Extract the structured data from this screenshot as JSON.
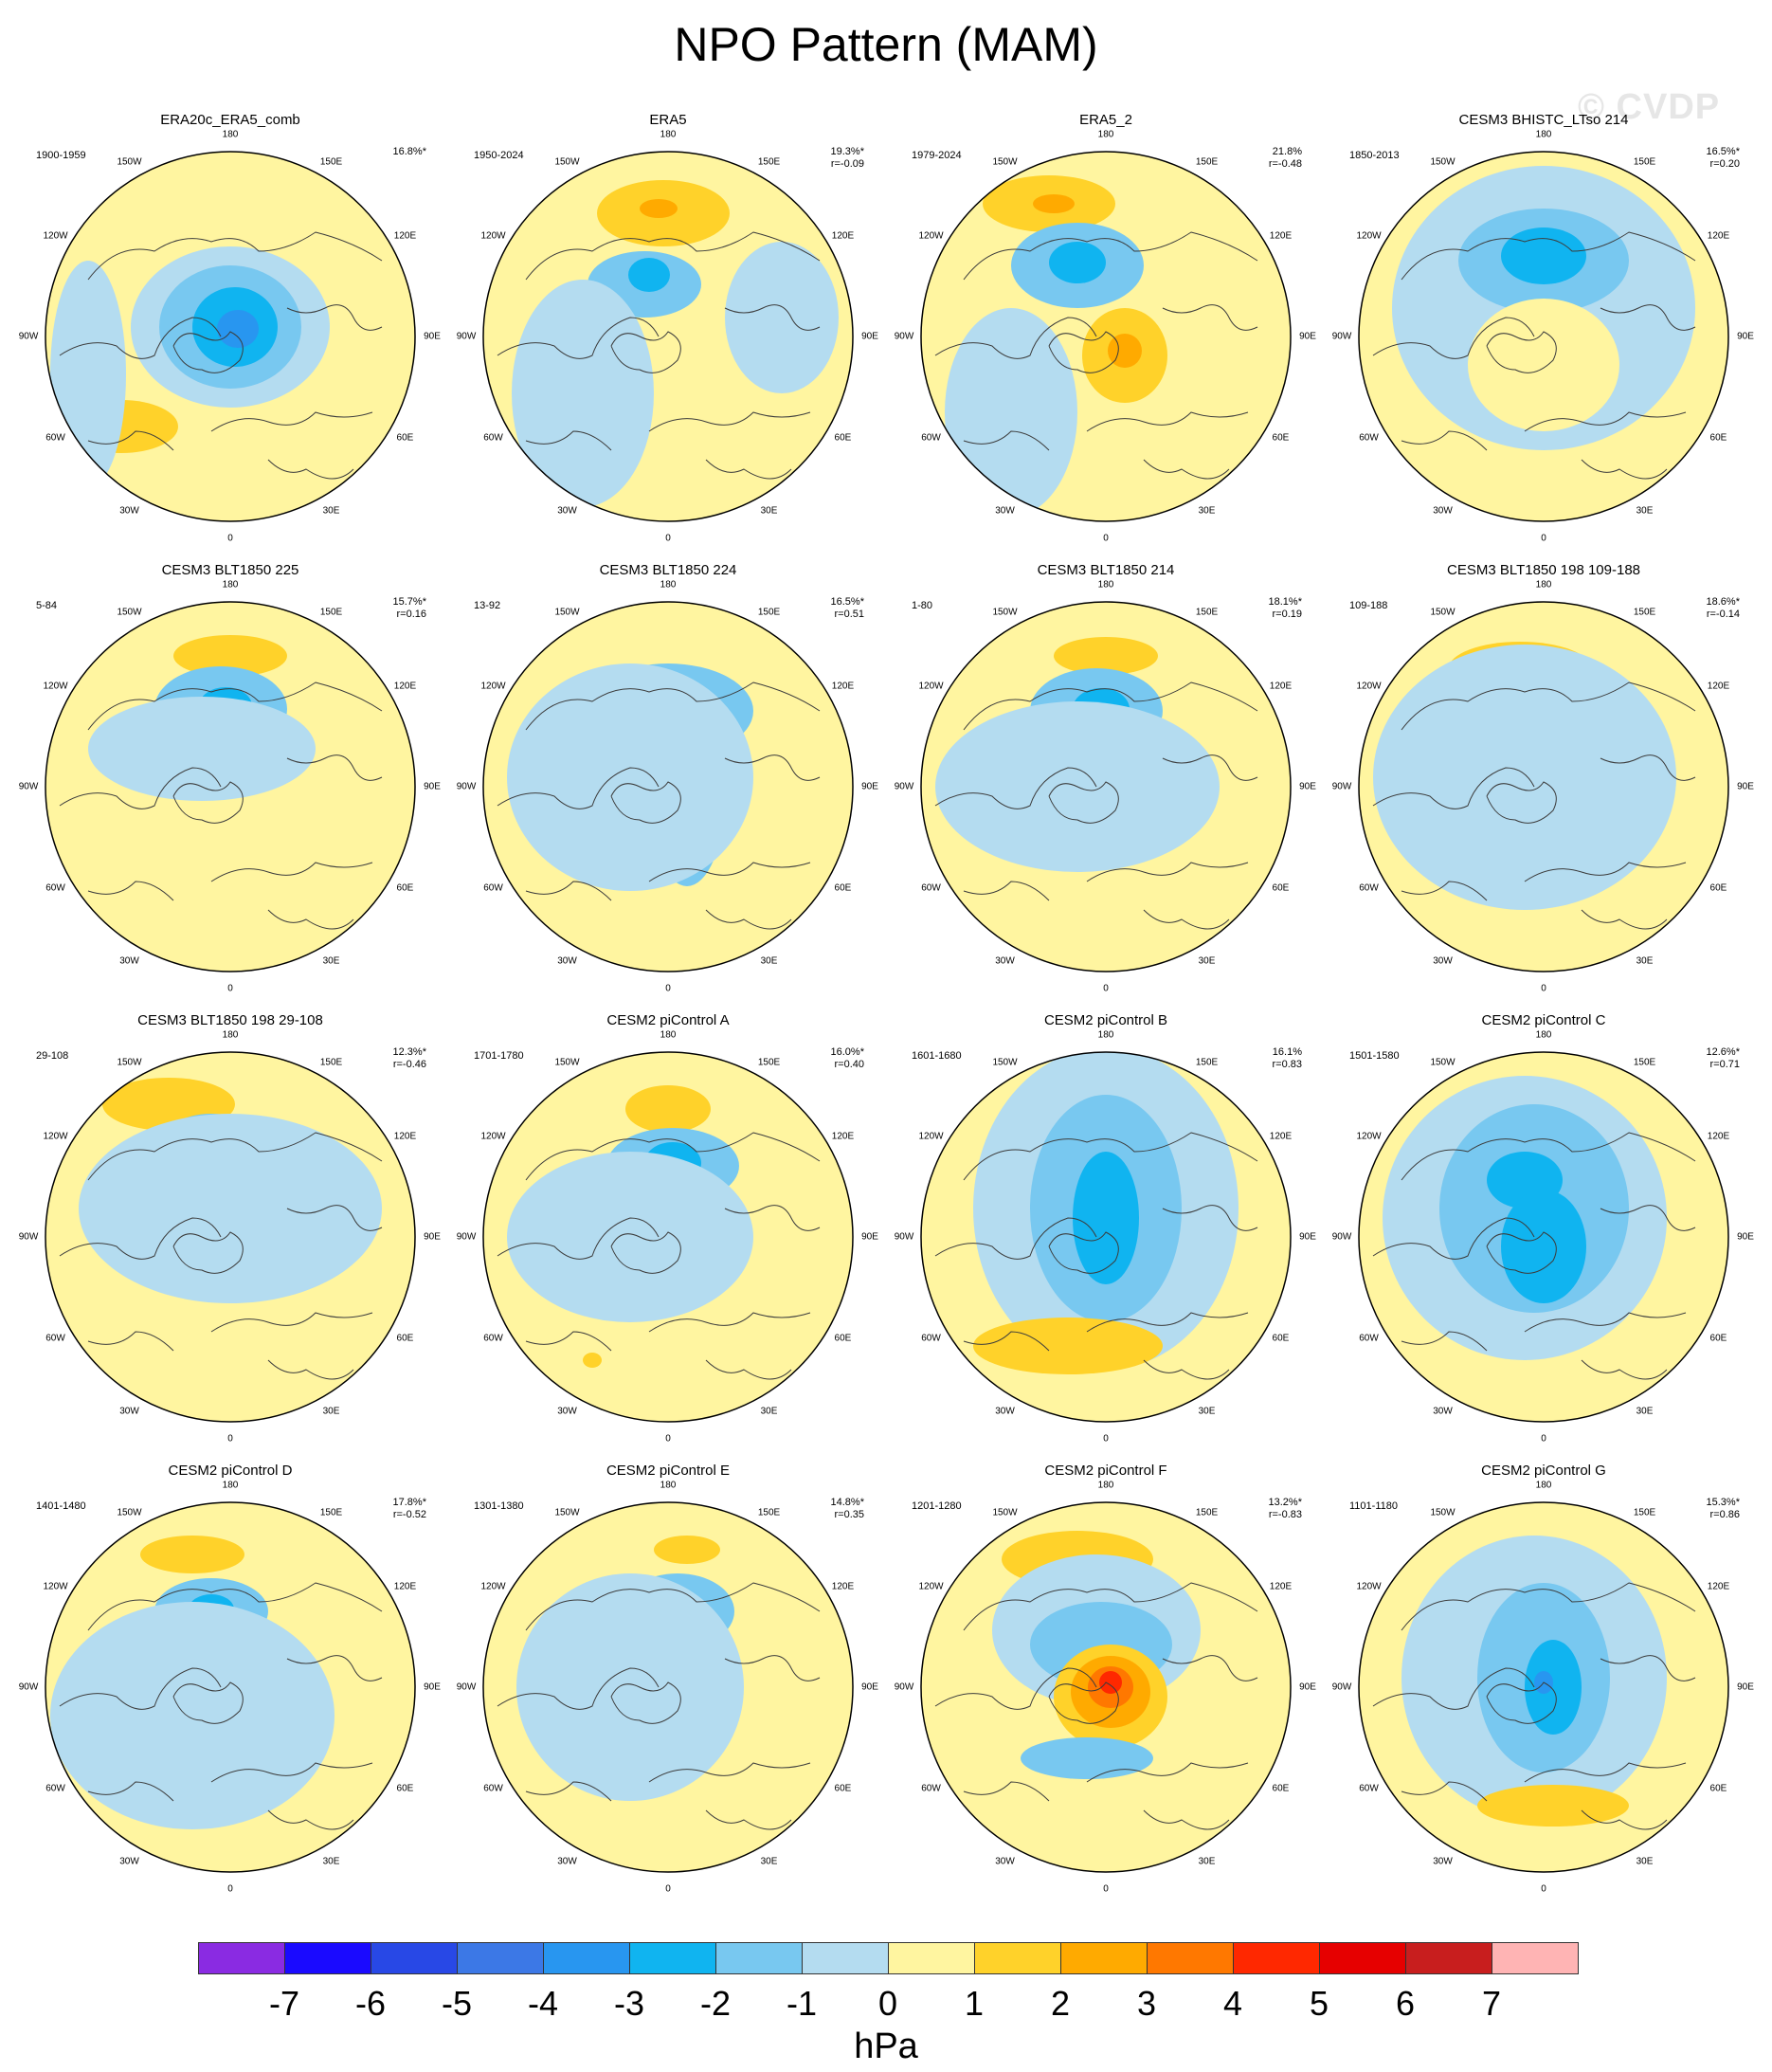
{
  "title": "NPO Pattern (MAM)",
  "watermark": "© CVDP",
  "lon_labels": [
    "180",
    "150E",
    "120E",
    "90E",
    "60E",
    "30E",
    "0",
    "30W",
    "60W",
    "90W",
    "120W",
    "150W"
  ],
  "colors": {
    "land_outline": "#3c3c3c",
    "circle_outline": "#000000"
  },
  "panels": [
    {
      "title": "ERA20c_ERA5_comb",
      "period": "1900-1959",
      "pct": "16.8%*",
      "r": ""
    },
    {
      "title": "ERA5",
      "period": "1950-2024",
      "pct": "19.3%*",
      "r": "r=-0.09"
    },
    {
      "title": "ERA5_2",
      "period": "1979-2024",
      "pct": "21.8%",
      "r": "r=-0.48"
    },
    {
      "title": "CESM3 BHISTC_LTso 214",
      "period": "1850-2013",
      "pct": "16.5%*",
      "r": "r=0.20"
    },
    {
      "title": "CESM3 BLT1850 225",
      "period": "5-84",
      "pct": "15.7%*",
      "r": "r=0.16"
    },
    {
      "title": "CESM3 BLT1850 224",
      "period": "13-92",
      "pct": "16.5%*",
      "r": "r=0.51"
    },
    {
      "title": "CESM3 BLT1850 214",
      "period": "1-80",
      "pct": "18.1%*",
      "r": "r=0.19"
    },
    {
      "title": "CESM3 BLT1850 198 109-188",
      "period": "109-188",
      "pct": "18.6%*",
      "r": "r=-0.14"
    },
    {
      "title": "CESM3 BLT1850 198 29-108",
      "period": "29-108",
      "pct": "12.3%*",
      "r": "r=-0.46"
    },
    {
      "title": "CESM2 piControl A",
      "period": "1701-1780",
      "pct": "16.0%*",
      "r": "r=0.40"
    },
    {
      "title": "CESM2 piControl B",
      "period": "1601-1680",
      "pct": "16.1%",
      "r": "r=0.83"
    },
    {
      "title": "CESM2 piControl C",
      "period": "1501-1580",
      "pct": "12.6%*",
      "r": "r=0.71"
    },
    {
      "title": "CESM2 piControl D",
      "period": "1401-1480",
      "pct": "17.8%*",
      "r": "r=-0.52"
    },
    {
      "title": "CESM2 piControl E",
      "period": "1301-1380",
      "pct": "14.8%*",
      "r": "r=0.35"
    },
    {
      "title": "CESM2 piControl F",
      "period": "1201-1280",
      "pct": "13.2%*",
      "r": "r=-0.83"
    },
    {
      "title": "CESM2 piControl G",
      "period": "1101-1180",
      "pct": "15.3%*",
      "r": "r=0.86"
    }
  ],
  "colorbar": {
    "unit": "hPa",
    "tick_labels": [
      "-7",
      "-6",
      "-5",
      "-4",
      "-3",
      "-2",
      "-1",
      "0",
      "1",
      "2",
      "3",
      "4",
      "5",
      "6",
      "7"
    ],
    "colors": [
      "#8a2be2",
      "#1a0aff",
      "#2848e6",
      "#3c78e6",
      "#2896f0",
      "#10b4f0",
      "#78c8f0",
      "#b4dcf0",
      "#fff5a0",
      "#ffd22a",
      "#ffaa00",
      "#ff7800",
      "#ff2800",
      "#e60000",
      "#c81e1e",
      "#ffb4b4"
    ]
  }
}
